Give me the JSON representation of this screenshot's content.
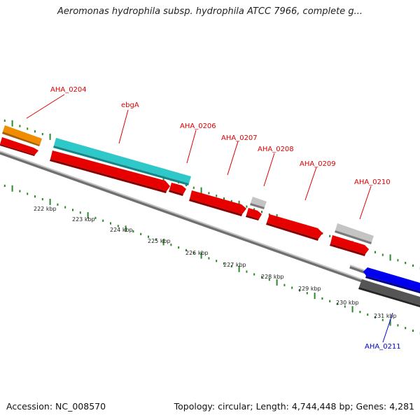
{
  "title": "Aeromonas hydrophila subsp. hydrophila ATCC 7966, complete g...",
  "footer": {
    "accession": "Accession: NC_008570",
    "stats": "Topology: circular; Length: 4,744,448 bp; Genes: 4,281"
  },
  "colors": {
    "forward_cds": "#e60000",
    "rRNA": "#2fc8c8",
    "gene_other": "#f08c00",
    "reverse_cds": "#0000ee",
    "pseudo": "#c4c4c4",
    "dark": "#555555",
    "backbone": "#9a9a9a",
    "ticks": "#2a8a2a"
  },
  "kbp_ticks": [
    "222 kbp",
    "223 kbp",
    "224 kbp",
    "225 kbp",
    "226 kbp",
    "227 kbp",
    "228 kbp",
    "229 kbp",
    "230 kbp",
    "231 kbp"
  ],
  "gene_labels": [
    {
      "id": "AHA_0204",
      "text": "AHA_0204",
      "color": "red"
    },
    {
      "id": "ebgA",
      "text": "ebgA",
      "color": "red"
    },
    {
      "id": "AHA_0206",
      "text": "AHA_0206",
      "color": "red"
    },
    {
      "id": "AHA_0207",
      "text": "AHA_0207",
      "color": "red"
    },
    {
      "id": "AHA_0208",
      "text": "AHA_0208",
      "color": "red"
    },
    {
      "id": "AHA_0209",
      "text": "AHA_0209",
      "color": "red"
    },
    {
      "id": "AHA_0210",
      "text": "AHA_0210",
      "color": "red"
    },
    {
      "id": "AHA_0211",
      "text": "AHA_0211",
      "color": "blue"
    }
  ]
}
